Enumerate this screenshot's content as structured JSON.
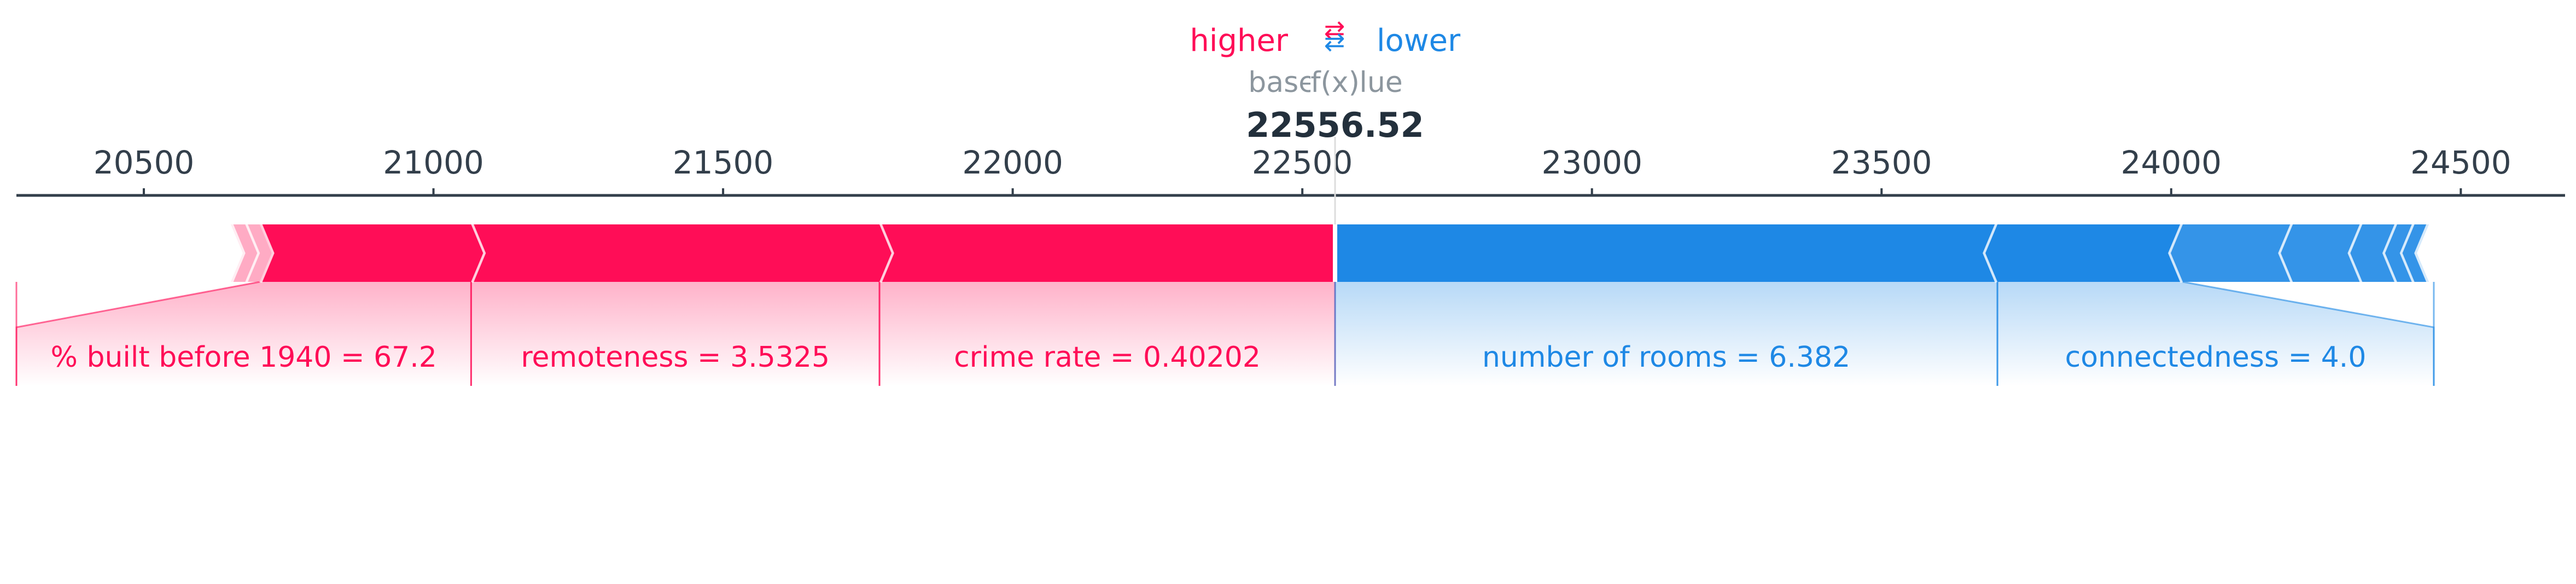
{
  "legend": {
    "higher_label": "higher",
    "lower_label": "lower",
    "higher_color": "#ff0d57",
    "lower_color": "#1e88e5",
    "arrow_icon": "swap-arrows-icon"
  },
  "base_value_label": "base value",
  "output_label": "f(x)",
  "chart_data": {
    "type": "force",
    "output_value": 22556.52,
    "output_value_text": "22556.52",
    "xlim": [
      20280,
      24680
    ],
    "ticks": [
      20500,
      21000,
      21500,
      22000,
      22500,
      23000,
      23500,
      24000,
      24500
    ],
    "base_value": 22540,
    "positive_features": [
      {
        "label": "crime rate = 0.40202",
        "start": 21770,
        "end": 22556.52
      },
      {
        "label": "remoteness = 3.5325",
        "start": 21065,
        "end": 21770
      },
      {
        "label": "% built before 1940 = 67.2",
        "start": 20700,
        "end": 21065
      },
      {
        "label": "",
        "start": 20675,
        "end": 20700
      },
      {
        "label": "",
        "start": 20650,
        "end": 20675
      }
    ],
    "negative_features": [
      {
        "label": "number of rooms = 6.382",
        "start": 22556.52,
        "end": 23700
      },
      {
        "label": "connectedness = 4.0",
        "start": 23700,
        "end": 24020
      },
      {
        "label": "",
        "start": 24020,
        "end": 24210
      },
      {
        "label": "",
        "start": 24210,
        "end": 24330
      },
      {
        "label": "",
        "start": 24330,
        "end": 24390
      },
      {
        "label": "",
        "start": 24390,
        "end": 24420
      },
      {
        "label": "",
        "start": 24420,
        "end": 24445
      }
    ]
  }
}
